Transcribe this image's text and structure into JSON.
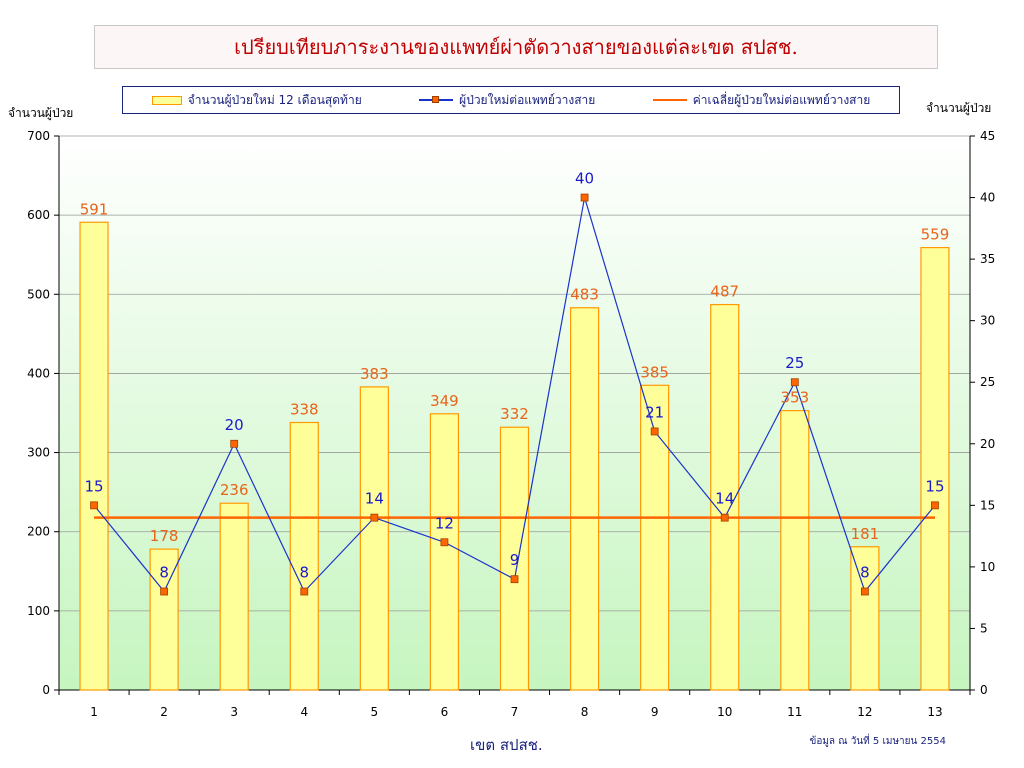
{
  "chart_data": {
    "type": "bar",
    "title": "เปรียบเทียบภาระงานของแพทย์ผ่าตัดวางสายของแต่ละเขต สปสช.",
    "xlabel": "เขต สปสช.",
    "ylabel_left": "จำนวนผู้ป่วย",
    "ylabel_right": "จำนวนผู้ป่วย",
    "note": "ข้อมูล ณ วันที่ 5 เมษายน 2554",
    "categories": [
      "1",
      "2",
      "3",
      "4",
      "5",
      "6",
      "7",
      "8",
      "9",
      "10",
      "11",
      "12",
      "13"
    ],
    "ylim_left": [
      0,
      700
    ],
    "yticks_left": [
      0,
      100,
      200,
      300,
      400,
      500,
      600,
      700
    ],
    "ylim_right": [
      0,
      45
    ],
    "yticks_right": [
      0,
      5,
      10,
      15,
      20,
      25,
      30,
      35,
      40,
      45
    ],
    "legend_position": "top",
    "grid": true,
    "series": [
      {
        "name": "จำนวนผู้ป่วยใหม่ 12 เดือนสุดท้าย",
        "type": "bar",
        "axis": "left",
        "values": [
          591,
          178,
          236,
          338,
          383,
          349,
          332,
          483,
          385,
          487,
          353,
          181,
          559
        ],
        "labels": [
          "591",
          "178",
          "236",
          "338",
          "383",
          "349",
          "332",
          "483",
          "385",
          "487",
          "353",
          "181",
          "559"
        ],
        "color": "#ffff99"
      },
      {
        "name": "ผู้ป่วยใหม่ต่อแพทย์วางสาย",
        "type": "line",
        "axis": "right",
        "values": [
          15,
          8,
          20,
          8,
          14,
          12,
          9,
          40,
          21,
          14,
          25,
          8,
          15
        ],
        "labels": [
          "15",
          "8",
          "20",
          "8",
          "14",
          "12",
          "9",
          "40",
          "21",
          "14",
          "25",
          "8",
          "15"
        ],
        "color": "#1a33cc"
      },
      {
        "name": "ค่าเฉลี่ยผู้ป่วยใหม่ต่อแพทย์วางสาย",
        "type": "line",
        "axis": "right",
        "values": [
          14,
          14,
          14,
          14,
          14,
          14,
          14,
          14,
          14,
          14,
          14,
          14,
          14
        ],
        "color": "#ff6600"
      }
    ],
    "colors": {
      "bar_fill": "#ffff99",
      "bar_edge": "#ff9900",
      "line": "#1a33cc",
      "marker": "#ff6600",
      "avg": "#ff6600",
      "label_bar": "#e8641a",
      "label_point": "#1a1acc"
    }
  }
}
